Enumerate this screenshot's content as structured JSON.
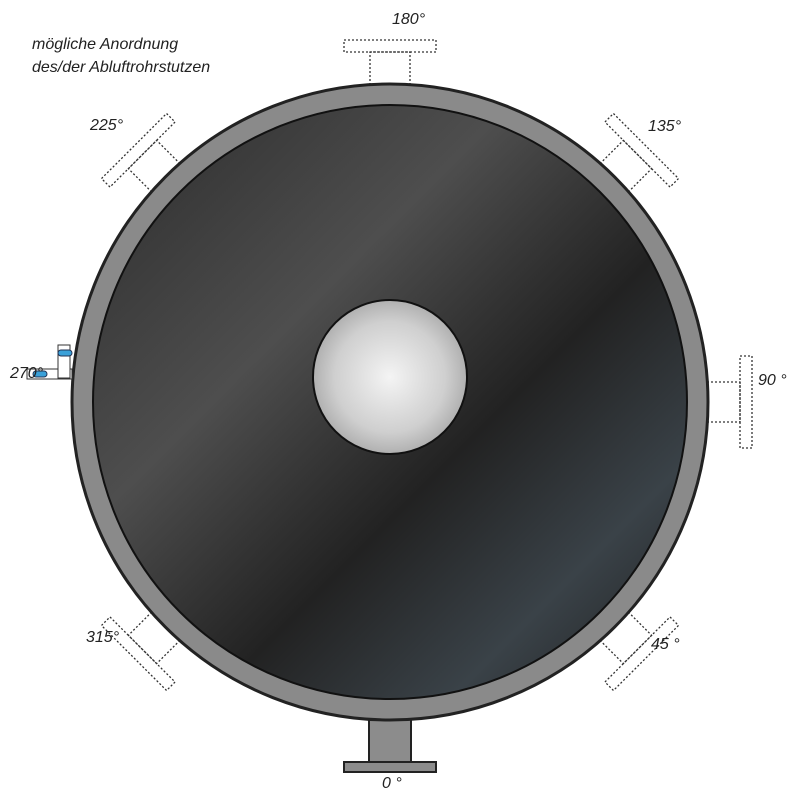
{
  "header": {
    "lines": [
      "mögliche Anordnung",
      "des/der Abluftrohrstutzen"
    ]
  },
  "angle_labels": [
    "180°",
    "135°",
    "90 °",
    "45 °",
    "0 °",
    "315°",
    "270°",
    "225°"
  ]
}
